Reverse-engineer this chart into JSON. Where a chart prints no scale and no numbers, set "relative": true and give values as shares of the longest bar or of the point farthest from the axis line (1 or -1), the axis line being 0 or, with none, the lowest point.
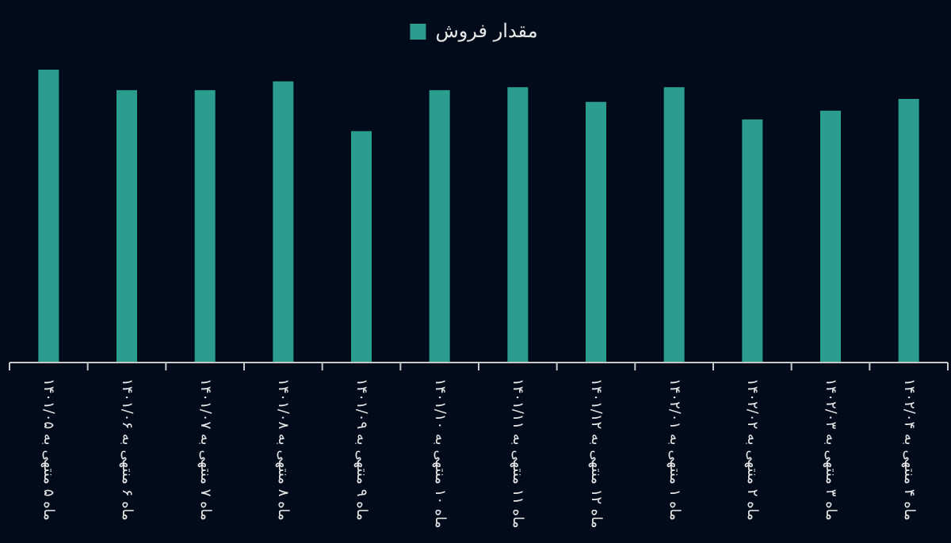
{
  "chart_data": {
    "type": "bar",
    "relative": true,
    "legend": "top",
    "categories": [
      "ماه ۵ منتهی به ۱۴۰۱/۰۵",
      "ماه ۶ منتهی به ۱۴۰۱/۰۶",
      "ماه ۷ منتهی به ۱۴۰۱/۰۷",
      "ماه ۸ منتهی به ۱۴۰۱/۰۸",
      "ماه ۹ منتهی به ۱۴۰۱/۰۹",
      "ماه ۱۰ منتهی به ۱۴۰۱/۱۰",
      "ماه ۱۱ منتهی به ۱۴۰۱/۱۱",
      "ماه ۱۲ منتهی به ۱۴۰۱/۱۲",
      "ماه ۱ منتهی به ۱۴۰۲/۰۱",
      "ماه ۲ منتهی به ۱۴۰۲/۰۲",
      "ماه ۳ منتهی به ۱۴۰۲/۰۳",
      "ماه ۴ منتهی به ۱۴۰۲/۰۴"
    ],
    "series": [
      {
        "name": "مقدار فروش",
        "color": "#2a9d8f",
        "values": [
          1,
          0.93,
          0.93,
          0.96,
          0.79,
          0.93,
          0.94,
          0.89,
          0.94,
          0.83,
          0.86,
          0.9
        ]
      }
    ]
  }
}
